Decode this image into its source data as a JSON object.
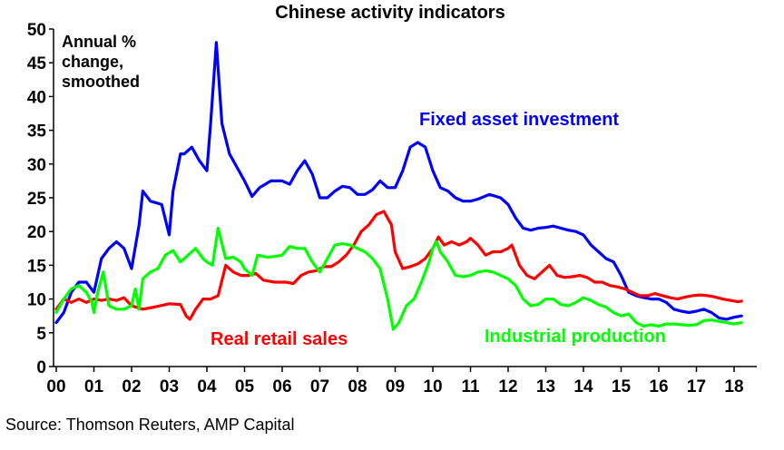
{
  "chart_data": {
    "type": "line",
    "title": "Chinese activity indicators",
    "annotation": [
      "Annual %",
      "change,",
      "smoothed"
    ],
    "source": "Source: Thomson Reuters, AMP Capital",
    "xlabel": "",
    "ylabel": "",
    "xlim": [
      0,
      18.6
    ],
    "ylim": [
      0,
      50
    ],
    "yticks": [
      0,
      5,
      10,
      15,
      20,
      25,
      30,
      35,
      40,
      45,
      50
    ],
    "xticks": [
      {
        "x": 0,
        "label": "00"
      },
      {
        "x": 1,
        "label": "01"
      },
      {
        "x": 2,
        "label": "02"
      },
      {
        "x": 3,
        "label": "03"
      },
      {
        "x": 4,
        "label": "04"
      },
      {
        "x": 5,
        "label": "05"
      },
      {
        "x": 6,
        "label": "06"
      },
      {
        "x": 7,
        "label": "07"
      },
      {
        "x": 8,
        "label": "08"
      },
      {
        "x": 9,
        "label": "09"
      },
      {
        "x": 10,
        "label": "10"
      },
      {
        "x": 11,
        "label": "11"
      },
      {
        "x": 12,
        "label": "12"
      },
      {
        "x": 13,
        "label": "13"
      },
      {
        "x": 14,
        "label": "14"
      },
      {
        "x": 15,
        "label": "15"
      },
      {
        "x": 16,
        "label": "16"
      },
      {
        "x": 17,
        "label": "17"
      },
      {
        "x": 18,
        "label": "18"
      }
    ],
    "grid": false,
    "legend": "none",
    "series": [
      {
        "name": "Fixed asset investment",
        "color": "#0000ff",
        "points": [
          [
            0.0,
            6.5
          ],
          [
            0.2,
            8.0
          ],
          [
            0.4,
            11.0
          ],
          [
            0.6,
            12.5
          ],
          [
            0.8,
            12.5
          ],
          [
            1.0,
            11.0
          ],
          [
            1.2,
            16.0
          ],
          [
            1.4,
            17.5
          ],
          [
            1.6,
            18.5
          ],
          [
            1.8,
            17.5
          ],
          [
            2.0,
            14.5
          ],
          [
            2.2,
            21.0
          ],
          [
            2.3,
            26.0
          ],
          [
            2.5,
            24.5
          ],
          [
            2.8,
            24.0
          ],
          [
            3.0,
            19.5
          ],
          [
            3.1,
            26.0
          ],
          [
            3.3,
            31.5
          ],
          [
            3.4,
            31.5
          ],
          [
            3.6,
            32.5
          ],
          [
            3.8,
            30.5
          ],
          [
            4.0,
            29.0
          ],
          [
            4.1,
            36.0
          ],
          [
            4.25,
            48.0
          ],
          [
            4.4,
            36.0
          ],
          [
            4.6,
            31.5
          ],
          [
            4.8,
            29.5
          ],
          [
            5.0,
            27.5
          ],
          [
            5.2,
            25.2
          ],
          [
            5.4,
            26.5
          ],
          [
            5.7,
            27.5
          ],
          [
            6.0,
            27.5
          ],
          [
            6.2,
            27.0
          ],
          [
            6.4,
            29.0
          ],
          [
            6.6,
            30.5
          ],
          [
            6.8,
            28.5
          ],
          [
            7.0,
            25.0
          ],
          [
            7.2,
            25.0
          ],
          [
            7.4,
            26.0
          ],
          [
            7.6,
            26.7
          ],
          [
            7.8,
            26.5
          ],
          [
            8.0,
            25.5
          ],
          [
            8.2,
            25.5
          ],
          [
            8.4,
            26.2
          ],
          [
            8.6,
            27.5
          ],
          [
            8.8,
            26.5
          ],
          [
            9.0,
            26.5
          ],
          [
            9.2,
            29.0
          ],
          [
            9.4,
            32.5
          ],
          [
            9.6,
            33.2
          ],
          [
            9.8,
            32.5
          ],
          [
            10.0,
            29.0
          ],
          [
            10.2,
            26.5
          ],
          [
            10.4,
            26.0
          ],
          [
            10.6,
            25.0
          ],
          [
            10.8,
            24.5
          ],
          [
            11.0,
            24.5
          ],
          [
            11.2,
            24.8
          ],
          [
            11.5,
            25.5
          ],
          [
            11.8,
            25.0
          ],
          [
            12.0,
            24.0
          ],
          [
            12.2,
            22.0
          ],
          [
            12.4,
            20.5
          ],
          [
            12.6,
            20.2
          ],
          [
            12.8,
            20.5
          ],
          [
            13.0,
            20.6
          ],
          [
            13.2,
            20.8
          ],
          [
            13.4,
            20.5
          ],
          [
            13.6,
            20.2
          ],
          [
            13.8,
            20.0
          ],
          [
            14.0,
            19.5
          ],
          [
            14.2,
            18.0
          ],
          [
            14.4,
            17.0
          ],
          [
            14.6,
            16.0
          ],
          [
            14.8,
            15.5
          ],
          [
            15.0,
            13.5
          ],
          [
            15.2,
            11.0
          ],
          [
            15.4,
            10.5
          ],
          [
            15.6,
            10.2
          ],
          [
            15.8,
            10.0
          ],
          [
            16.0,
            10.0
          ],
          [
            16.2,
            9.5
          ],
          [
            16.4,
            8.5
          ],
          [
            16.6,
            8.2
          ],
          [
            16.8,
            8.0
          ],
          [
            17.0,
            8.2
          ],
          [
            17.2,
            8.5
          ],
          [
            17.4,
            8.0
          ],
          [
            17.6,
            7.2
          ],
          [
            17.8,
            7.0
          ],
          [
            18.0,
            7.3
          ],
          [
            18.2,
            7.5
          ]
        ]
      },
      {
        "name": "Real retail sales",
        "color": "#ff0000",
        "points": [
          [
            0.0,
            8.5
          ],
          [
            0.2,
            10.0
          ],
          [
            0.4,
            9.5
          ],
          [
            0.6,
            10.0
          ],
          [
            0.8,
            9.5
          ],
          [
            1.0,
            10.0
          ],
          [
            1.2,
            9.8
          ],
          [
            1.4,
            10.0
          ],
          [
            1.6,
            9.8
          ],
          [
            1.8,
            10.2
          ],
          [
            2.0,
            9.0
          ],
          [
            2.3,
            8.5
          ],
          [
            2.6,
            8.8
          ],
          [
            3.0,
            9.3
          ],
          [
            3.3,
            9.2
          ],
          [
            3.45,
            7.5
          ],
          [
            3.55,
            7.0
          ],
          [
            3.7,
            8.5
          ],
          [
            3.9,
            10.0
          ],
          [
            4.1,
            10.0
          ],
          [
            4.3,
            10.5
          ],
          [
            4.5,
            15.0
          ],
          [
            4.7,
            14.0
          ],
          [
            4.9,
            13.5
          ],
          [
            5.1,
            13.5
          ],
          [
            5.3,
            13.8
          ],
          [
            5.5,
            12.8
          ],
          [
            5.8,
            12.5
          ],
          [
            6.1,
            12.5
          ],
          [
            6.3,
            12.3
          ],
          [
            6.5,
            13.5
          ],
          [
            6.7,
            14.0
          ],
          [
            6.9,
            14.2
          ],
          [
            7.1,
            14.8
          ],
          [
            7.3,
            14.8
          ],
          [
            7.5,
            15.5
          ],
          [
            7.7,
            16.5
          ],
          [
            7.9,
            18.0
          ],
          [
            8.1,
            20.0
          ],
          [
            8.3,
            21.0
          ],
          [
            8.5,
            22.5
          ],
          [
            8.7,
            23.0
          ],
          [
            8.9,
            21.0
          ],
          [
            9.0,
            17.0
          ],
          [
            9.2,
            14.5
          ],
          [
            9.4,
            14.8
          ],
          [
            9.6,
            15.2
          ],
          [
            9.8,
            16.0
          ],
          [
            10.0,
            17.5
          ],
          [
            10.15,
            19.2
          ],
          [
            10.3,
            18.0
          ],
          [
            10.5,
            18.5
          ],
          [
            10.7,
            18.0
          ],
          [
            10.9,
            18.5
          ],
          [
            11.0,
            19.0
          ],
          [
            11.2,
            18.0
          ],
          [
            11.4,
            16.5
          ],
          [
            11.6,
            17.0
          ],
          [
            11.8,
            17.0
          ],
          [
            12.0,
            17.5
          ],
          [
            12.1,
            18.0
          ],
          [
            12.3,
            15.0
          ],
          [
            12.5,
            13.5
          ],
          [
            12.7,
            13.0
          ],
          [
            12.9,
            14.0
          ],
          [
            13.1,
            15.0
          ],
          [
            13.3,
            13.5
          ],
          [
            13.5,
            13.2
          ],
          [
            13.7,
            13.3
          ],
          [
            13.9,
            13.5
          ],
          [
            14.1,
            13.2
          ],
          [
            14.3,
            12.5
          ],
          [
            14.5,
            12.5
          ],
          [
            14.7,
            12.0
          ],
          [
            14.9,
            11.8
          ],
          [
            15.1,
            11.5
          ],
          [
            15.3,
            11.0
          ],
          [
            15.5,
            10.5
          ],
          [
            15.7,
            10.5
          ],
          [
            15.9,
            10.8
          ],
          [
            16.1,
            10.5
          ],
          [
            16.3,
            10.2
          ],
          [
            16.5,
            10.0
          ],
          [
            16.7,
            10.3
          ],
          [
            16.9,
            10.5
          ],
          [
            17.1,
            10.6
          ],
          [
            17.3,
            10.5
          ],
          [
            17.5,
            10.3
          ],
          [
            17.7,
            10.0
          ],
          [
            17.9,
            9.8
          ],
          [
            18.1,
            9.6
          ],
          [
            18.2,
            9.7
          ]
        ]
      },
      {
        "name": "Industrial production",
        "color": "#00ff00",
        "points": [
          [
            0.0,
            8.0
          ],
          [
            0.2,
            10.0
          ],
          [
            0.4,
            11.5
          ],
          [
            0.6,
            12.0
          ],
          [
            0.8,
            11.0
          ],
          [
            0.95,
            9.5
          ],
          [
            1.0,
            8.0
          ],
          [
            1.1,
            11.0
          ],
          [
            1.25,
            14.0
          ],
          [
            1.4,
            9.0
          ],
          [
            1.6,
            8.5
          ],
          [
            1.8,
            8.5
          ],
          [
            2.0,
            9.0
          ],
          [
            2.1,
            11.5
          ],
          [
            2.2,
            8.5
          ],
          [
            2.3,
            13.0
          ],
          [
            2.5,
            14.0
          ],
          [
            2.7,
            14.5
          ],
          [
            2.9,
            16.5
          ],
          [
            3.1,
            17.2
          ],
          [
            3.3,
            15.5
          ],
          [
            3.5,
            16.5
          ],
          [
            3.7,
            17.5
          ],
          [
            3.9,
            16.0
          ],
          [
            4.0,
            15.5
          ],
          [
            4.15,
            15.0
          ],
          [
            4.3,
            20.5
          ],
          [
            4.5,
            16.0
          ],
          [
            4.7,
            16.2
          ],
          [
            4.9,
            15.5
          ],
          [
            5.0,
            14.5
          ],
          [
            5.2,
            13.5
          ],
          [
            5.35,
            16.5
          ],
          [
            5.6,
            16.2
          ],
          [
            5.8,
            16.3
          ],
          [
            6.0,
            16.5
          ],
          [
            6.2,
            17.8
          ],
          [
            6.4,
            17.5
          ],
          [
            6.6,
            17.5
          ],
          [
            6.8,
            15.5
          ],
          [
            7.0,
            14.0
          ],
          [
            7.2,
            16.0
          ],
          [
            7.4,
            18.0
          ],
          [
            7.6,
            18.2
          ],
          [
            7.8,
            18.0
          ],
          [
            8.0,
            17.5
          ],
          [
            8.2,
            17.0
          ],
          [
            8.4,
            16.0
          ],
          [
            8.6,
            14.5
          ],
          [
            8.8,
            10.0
          ],
          [
            8.95,
            5.5
          ],
          [
            9.1,
            6.5
          ],
          [
            9.3,
            9.0
          ],
          [
            9.5,
            10.0
          ],
          [
            9.7,
            12.5
          ],
          [
            9.9,
            15.5
          ],
          [
            10.0,
            17.5
          ],
          [
            10.1,
            18.5
          ],
          [
            10.2,
            17.0
          ],
          [
            10.4,
            15.5
          ],
          [
            10.6,
            13.5
          ],
          [
            10.8,
            13.3
          ],
          [
            11.0,
            13.5
          ],
          [
            11.2,
            14.0
          ],
          [
            11.4,
            14.2
          ],
          [
            11.6,
            14.0
          ],
          [
            11.8,
            13.5
          ],
          [
            12.0,
            13.0
          ],
          [
            12.2,
            12.0
          ],
          [
            12.4,
            10.0
          ],
          [
            12.6,
            9.0
          ],
          [
            12.8,
            9.2
          ],
          [
            13.0,
            10.0
          ],
          [
            13.2,
            10.0
          ],
          [
            13.4,
            9.2
          ],
          [
            13.6,
            9.0
          ],
          [
            13.8,
            9.5
          ],
          [
            14.0,
            10.2
          ],
          [
            14.2,
            9.8
          ],
          [
            14.4,
            9.2
          ],
          [
            14.6,
            8.8
          ],
          [
            14.8,
            8.0
          ],
          [
            15.0,
            7.5
          ],
          [
            15.2,
            7.8
          ],
          [
            15.4,
            6.5
          ],
          [
            15.6,
            6.0
          ],
          [
            15.8,
            6.2
          ],
          [
            16.0,
            6.0
          ],
          [
            16.2,
            6.3
          ],
          [
            16.4,
            6.3
          ],
          [
            16.6,
            6.2
          ],
          [
            16.8,
            6.1
          ],
          [
            17.0,
            6.2
          ],
          [
            17.2,
            6.8
          ],
          [
            17.4,
            6.9
          ],
          [
            17.6,
            6.7
          ],
          [
            17.8,
            6.5
          ],
          [
            18.0,
            6.3
          ],
          [
            18.2,
            6.5
          ]
        ]
      }
    ]
  }
}
